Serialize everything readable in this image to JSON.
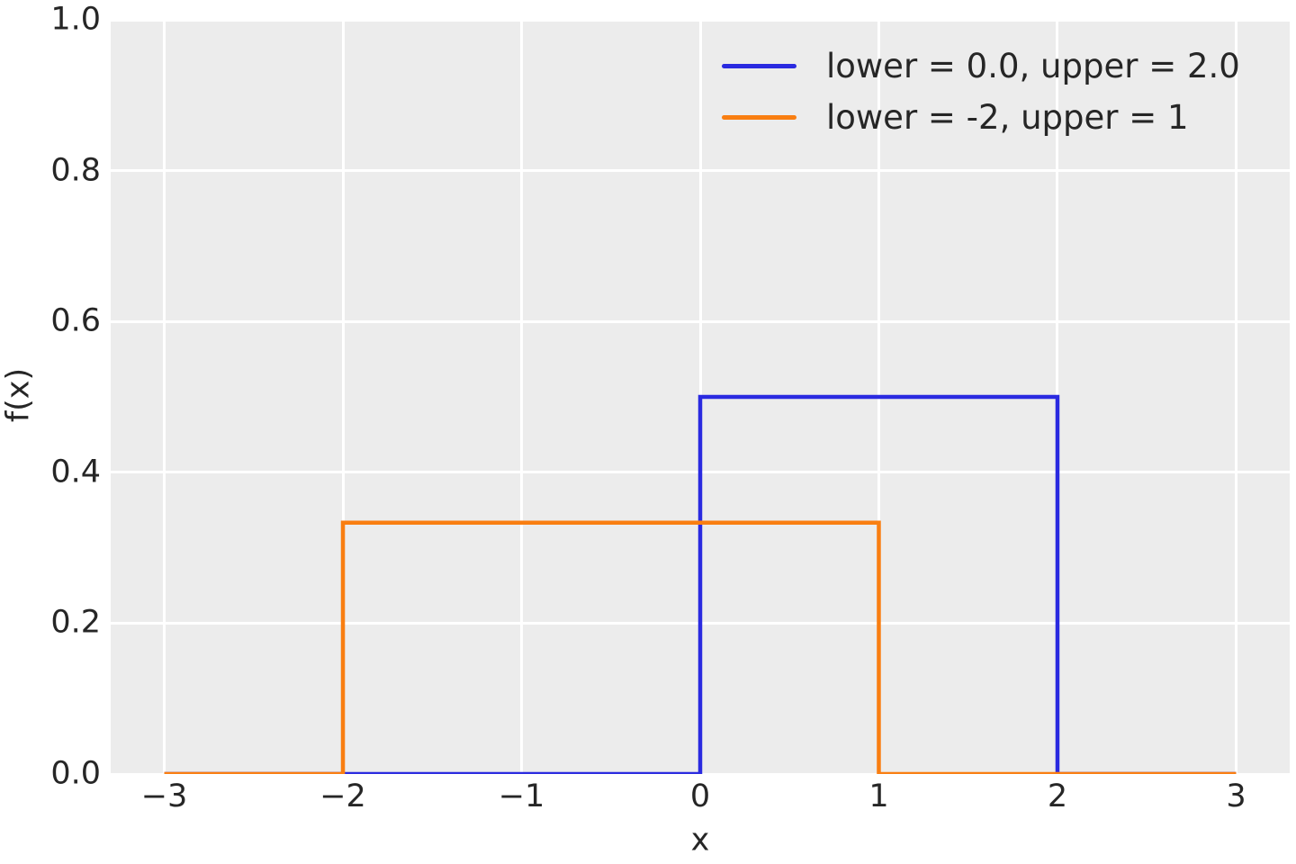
{
  "figure": {
    "background": "#ffffff",
    "plot_background": "#ececec",
    "grid_color": "#ffffff",
    "text_color": "#262626"
  },
  "chart_data": {
    "type": "line",
    "subtype": "step-pdf",
    "title": "",
    "xlabel": "x",
    "ylabel": "f(x)",
    "xlim": [
      -3.3,
      3.3
    ],
    "ylim": [
      0,
      1.0
    ],
    "grid": true,
    "legend": {
      "position": "upper right",
      "frame": false
    },
    "xticks": {
      "values": [
        -3,
        -2,
        -1,
        0,
        1,
        2,
        3
      ],
      "labels": [
        "−3",
        "−2",
        "−1",
        "0",
        "1",
        "2",
        "3"
      ]
    },
    "yticks": {
      "values": [
        0,
        0.2,
        0.4,
        0.6,
        0.8,
        1.0
      ],
      "labels": [
        "0.0",
        "0.2",
        "0.4",
        "0.6",
        "0.8",
        "1.0"
      ]
    },
    "series": [
      {
        "name": "lower = 0.0, upper = 2.0",
        "color": "#2a2ae0",
        "line_width": 4.5,
        "points": [
          [
            -3,
            0
          ],
          [
            0,
            0
          ],
          [
            0,
            0.5
          ],
          [
            2,
            0.5
          ],
          [
            2,
            0
          ],
          [
            3,
            0
          ]
        ]
      },
      {
        "name": "lower = -2, upper = 1",
        "color": "#f97e11",
        "line_width": 4.5,
        "points": [
          [
            -3,
            0
          ],
          [
            -2,
            0
          ],
          [
            -2,
            0.3333
          ],
          [
            1,
            0.3333
          ],
          [
            1,
            0
          ],
          [
            3,
            0
          ]
        ]
      }
    ]
  }
}
